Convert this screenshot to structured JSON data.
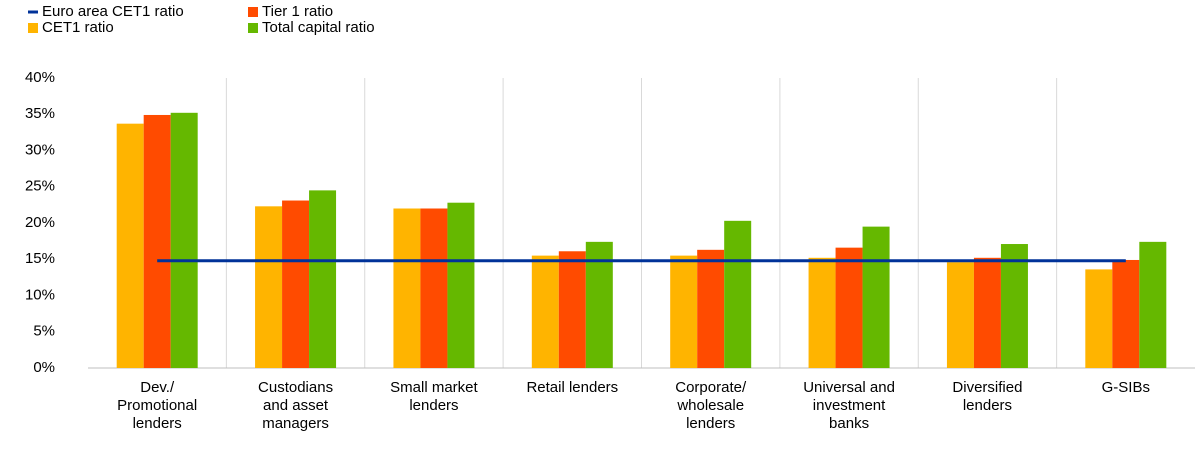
{
  "chart_data": {
    "type": "bar",
    "categories": [
      [
        "Dev./",
        "Promotional",
        "lenders"
      ],
      [
        "Custodians",
        "and asset",
        "managers"
      ],
      [
        "Small market",
        "lenders"
      ],
      [
        "Retail lenders"
      ],
      [
        "Corporate/",
        "wholesale",
        "lenders"
      ],
      [
        "Universal and",
        "investment",
        "banks"
      ],
      [
        "Diversified",
        "lenders"
      ],
      [
        "G-SIBs"
      ]
    ],
    "series": [
      {
        "name": "Euro area CET1 ratio",
        "type": "line",
        "color": "#003299",
        "values": [
          14.8,
          14.8,
          14.8,
          14.8,
          14.8,
          14.8,
          14.8,
          14.8
        ]
      },
      {
        "name": "CET1 ratio",
        "type": "bar",
        "color": "#ffb400",
        "values": [
          33.7,
          22.3,
          22.0,
          15.5,
          15.5,
          15.2,
          14.6,
          13.6
        ]
      },
      {
        "name": "Tier 1 ratio",
        "type": "bar",
        "color": "#ff4b00",
        "values": [
          34.9,
          23.1,
          22.0,
          16.1,
          16.3,
          16.6,
          15.2,
          14.9
        ]
      },
      {
        "name": "Total capital ratio",
        "type": "bar",
        "color": "#65b800",
        "values": [
          35.2,
          24.5,
          22.8,
          17.4,
          20.3,
          19.5,
          17.1,
          17.4
        ]
      }
    ],
    "ylim": [
      0,
      40
    ],
    "yticks": [
      {
        "value": 0,
        "label": "0%"
      },
      {
        "value": 5,
        "label": "5%"
      },
      {
        "value": 10,
        "label": "10%"
      },
      {
        "value": 15,
        "label": "15%"
      },
      {
        "value": 20,
        "label": "20%"
      },
      {
        "value": 25,
        "label": "25%"
      },
      {
        "value": 30,
        "label": "30%"
      },
      {
        "value": 35,
        "label": "35%"
      },
      {
        "value": 40,
        "label": "40%"
      }
    ]
  }
}
